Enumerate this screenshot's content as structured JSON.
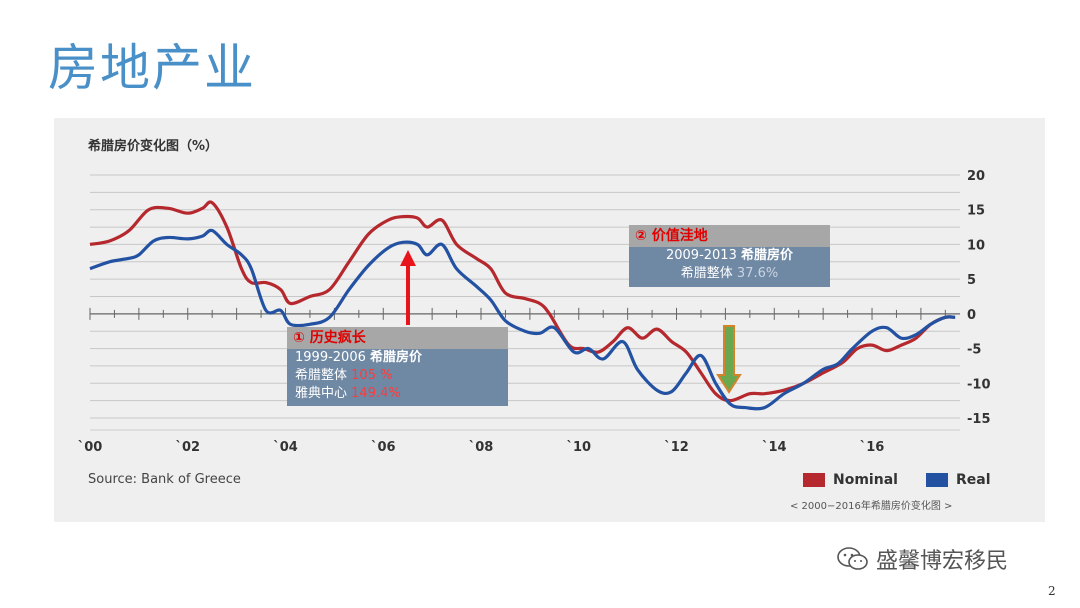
{
  "slide": {
    "title": "房地产业",
    "page_number": "2"
  },
  "watermark": {
    "text": "盛馨博宏移民",
    "icon": "wechat-icon"
  },
  "chart_data": {
    "type": "line",
    "title": "希腊房价变化图（%）",
    "source": "Source:  Bank of Greece",
    "caption": "< 2000−2016年希腊房价变化图 >",
    "x_tick_labels": [
      "`00",
      "`02",
      "`04",
      "`06",
      "`08",
      "`10",
      "`12",
      "`14",
      "`16"
    ],
    "x_tick_values": [
      2000,
      2002,
      2004,
      2006,
      2008,
      2010,
      2012,
      2014,
      2016
    ],
    "xlim": [
      2000,
      2017.8
    ],
    "y_tick_labels": [
      "20",
      "15",
      "10",
      "5",
      "0",
      "-5",
      "-10",
      "-15"
    ],
    "y_tick_values": [
      20,
      15,
      10,
      5,
      0,
      -5,
      -10,
      -15
    ],
    "ylim": [
      -15,
      20
    ],
    "grid": true,
    "legend_position": "bottom-right",
    "colors": {
      "Nominal": "#b5282d",
      "Real": "#2452a3",
      "up_arrow": "#e8141b",
      "down_arrow": "#d4832a",
      "down_arrow_fill": "#6aa84f"
    },
    "series": [
      {
        "name": "Nominal",
        "x": [
          2000,
          2000.4,
          2000.8,
          2001.2,
          2001.6,
          2002,
          2002.3,
          2002.5,
          2002.8,
          2003.1,
          2003.3,
          2003.6,
          2003.9,
          2004.1,
          2004.5,
          2004.9,
          2005.3,
          2005.7,
          2006.1,
          2006.4,
          2006.7,
          2006.9,
          2007.2,
          2007.5,
          2007.9,
          2008.2,
          2008.5,
          2008.9,
          2009.2,
          2009.4,
          2009.8,
          2010.1,
          2010.4,
          2010.7,
          2011,
          2011.3,
          2011.6,
          2011.9,
          2012.2,
          2012.5,
          2012.8,
          2013.1,
          2013.5,
          2013.8,
          2014.2,
          2014.6,
          2015,
          2015.4,
          2015.7,
          2016,
          2016.3,
          2016.6,
          2016.9,
          2017.2,
          2017.5,
          2017.7
        ],
        "values": [
          10,
          10.5,
          12,
          15,
          15.2,
          14.5,
          15.2,
          16,
          12.5,
          6.5,
          4.5,
          4.5,
          3.5,
          1.5,
          2.5,
          3.5,
          7.5,
          11.5,
          13.5,
          14,
          13.8,
          12.5,
          13.5,
          10,
          8,
          6.5,
          3,
          2.2,
          1.5,
          0,
          -4.5,
          -5,
          -5.5,
          -4,
          -2,
          -3.5,
          -2.2,
          -4,
          -5.5,
          -8.5,
          -11.5,
          -12.5,
          -11.5,
          -11.5,
          -11,
          -10,
          -8.5,
          -7,
          -5,
          -4.5,
          -5.3,
          -4.5,
          -3.5,
          -1.5,
          -0.5,
          -0.5
        ]
      },
      {
        "name": "Real",
        "x": [
          2000,
          2000.4,
          2000.8,
          2001,
          2001.3,
          2001.6,
          2002,
          2002.3,
          2002.5,
          2002.8,
          2003.1,
          2003.3,
          2003.6,
          2003.9,
          2004.1,
          2004.5,
          2004.9,
          2005.3,
          2005.7,
          2006.1,
          2006.4,
          2006.7,
          2006.9,
          2007.2,
          2007.5,
          2007.9,
          2008.2,
          2008.5,
          2008.9,
          2009.2,
          2009.5,
          2009.9,
          2010.2,
          2010.5,
          2010.9,
          2011.2,
          2011.6,
          2011.9,
          2012.2,
          2012.5,
          2012.8,
          2013.1,
          2013.4,
          2013.8,
          2014.2,
          2014.6,
          2015,
          2015.3,
          2015.6,
          2016,
          2016.3,
          2016.6,
          2016.9,
          2017.2,
          2017.5,
          2017.7
        ],
        "values": [
          6.5,
          7.5,
          8,
          8.5,
          10.5,
          11,
          10.8,
          11.2,
          12,
          10,
          8.5,
          6.5,
          0.5,
          0.5,
          -1.5,
          -1.5,
          -0.5,
          3.5,
          7,
          9.5,
          10.3,
          10,
          8.5,
          10,
          6.5,
          4,
          2,
          -1,
          -2.5,
          -2.8,
          -2,
          -5.5,
          -5,
          -6.5,
          -4,
          -8,
          -11,
          -11.2,
          -8.5,
          -6,
          -10,
          -13,
          -13.5,
          -13.5,
          -11.5,
          -10,
          -8,
          -7.2,
          -5,
          -2.5,
          -2,
          -3.5,
          -3,
          -1.5,
          -0.5,
          -0.5
        ]
      }
    ],
    "annotations": [
      {
        "header": "① 历史疯长",
        "title_years": "1999-2006",
        "title_text": "希腊房价",
        "rows": [
          {
            "label": "希腊整体",
            "value": "105 %"
          },
          {
            "label": "雅典中心",
            "value": "149.4%"
          }
        ]
      },
      {
        "header": "② 价值洼地",
        "title_years": "2009-2013",
        "title_text": "希腊房价",
        "rows": [
          {
            "label": "希腊整体",
            "value": "37.6%"
          }
        ]
      }
    ]
  }
}
